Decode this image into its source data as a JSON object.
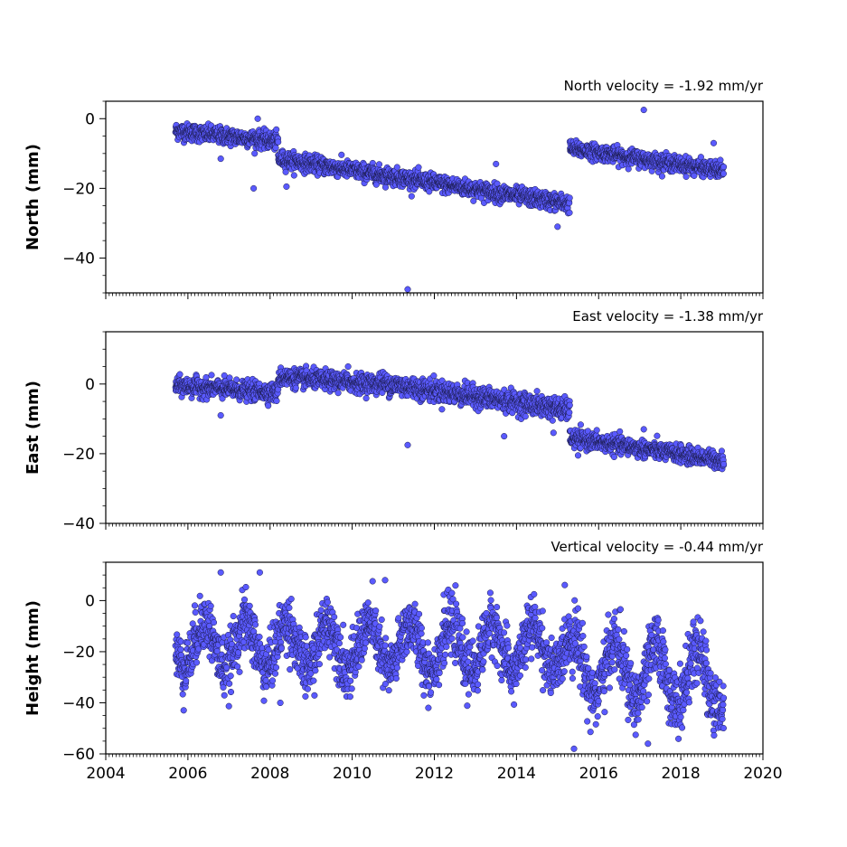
{
  "colors": {
    "marker_fill": "#5a5aff",
    "marker_edge": "#1a1a4a",
    "axes": "#000000",
    "background": "#ffffff"
  },
  "chart_data": [
    {
      "type": "scatter",
      "title": "North velocity = -1.92 mm/yr",
      "ylabel": "North (mm)",
      "xlim": [
        2004,
        2020
      ],
      "ylim": [
        -50,
        5
      ],
      "yticks": [
        0,
        -20,
        -40
      ],
      "ytick_labels": [
        "0",
        "−20",
        "−40"
      ],
      "xtick_labels_shown": false,
      "segments": [
        {
          "x_start": 2005.7,
          "x_end": 2008.2,
          "y_start": -3.5,
          "y_end": -6.5,
          "noise": 1.2
        },
        {
          "x_start": 2008.2,
          "x_end": 2015.3,
          "y_start": -11.5,
          "y_end": -24.5,
          "noise": 1.2
        },
        {
          "x_start": 2015.3,
          "x_end": 2019.05,
          "y_start": -8.5,
          "y_end": -15.0,
          "noise": 1.1
        }
      ],
      "outliers": [
        {
          "x": 2007.6,
          "y": -20
        },
        {
          "x": 2007.7,
          "y": 0
        },
        {
          "x": 2008.4,
          "y": -19.5
        },
        {
          "x": 2011.35,
          "y": -49
        },
        {
          "x": 2013.5,
          "y": -13
        },
        {
          "x": 2015.0,
          "y": -31
        },
        {
          "x": 2017.1,
          "y": 2.5
        },
        {
          "x": 2018.8,
          "y": -7
        },
        {
          "x": 2006.8,
          "y": -11.5
        }
      ]
    },
    {
      "type": "scatter",
      "title": "East velocity = -1.38 mm/yr",
      "ylabel": "East (mm)",
      "xlim": [
        2004,
        2020
      ],
      "ylim": [
        -40,
        15
      ],
      "yticks": [
        0,
        -20,
        -40
      ],
      "ytick_labels": [
        "0",
        "−20",
        "−40"
      ],
      "xtick_labels_shown": false,
      "segments": [
        {
          "x_start": 2005.7,
          "x_end": 2008.2,
          "y_start": -0.5,
          "y_end": -2.5,
          "noise": 1.3
        },
        {
          "x_start": 2008.2,
          "x_end": 2010.6,
          "y_start": 2.0,
          "y_end": 0.0,
          "noise": 1.3
        },
        {
          "x_start": 2010.6,
          "x_end": 2015.3,
          "y_start": 0.5,
          "y_end": -7.5,
          "noise": 1.5
        },
        {
          "x_start": 2015.3,
          "x_end": 2019.05,
          "y_start": -15.5,
          "y_end": -22.0,
          "noise": 1.2
        }
      ],
      "outliers": [
        {
          "x": 2006.8,
          "y": -9
        },
        {
          "x": 2011.35,
          "y": -17.5
        },
        {
          "x": 2013.7,
          "y": -15
        },
        {
          "x": 2014.9,
          "y": -14
        },
        {
          "x": 2015.5,
          "y": -20.5
        },
        {
          "x": 2017.1,
          "y": -13
        },
        {
          "x": 2009.9,
          "y": 5
        }
      ]
    },
    {
      "type": "scatter",
      "title": "Vertical velocity = -0.44 mm/yr",
      "ylabel": "Height (mm)",
      "xlim": [
        2004,
        2020
      ],
      "ylim": [
        -60,
        15
      ],
      "yticks": [
        0,
        -20,
        -40,
        -60
      ],
      "ytick_labels": [
        "0",
        "−20",
        "−40",
        "−60"
      ],
      "xticks": [
        2004,
        2006,
        2008,
        2010,
        2012,
        2014,
        2016,
        2018,
        2020
      ],
      "xtick_labels": [
        "2004",
        "2006",
        "2008",
        "2010",
        "2012",
        "2014",
        "2016",
        "2018",
        "2020"
      ],
      "xtick_labels_shown": true,
      "segments": [
        {
          "x_start": 2005.7,
          "x_end": 2015.3,
          "y_start": -17.0,
          "y_end": -19.0,
          "noise": 5.5,
          "seasonal_amplitude": 9
        },
        {
          "x_start": 2015.3,
          "x_end": 2019.05,
          "y_start": -25.0,
          "y_end": -32.0,
          "noise": 6.0,
          "seasonal_amplitude": 11
        }
      ],
      "outliers": [
        {
          "x": 2006.8,
          "y": 11
        },
        {
          "x": 2007.75,
          "y": 11
        },
        {
          "x": 2010.8,
          "y": 8
        },
        {
          "x": 2015.4,
          "y": -58
        },
        {
          "x": 2017.2,
          "y": -56
        },
        {
          "x": 2008.25,
          "y": -40
        }
      ]
    }
  ]
}
